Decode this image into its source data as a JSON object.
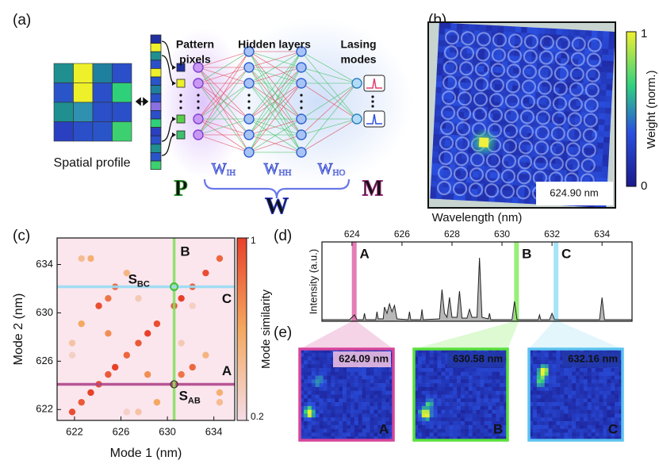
{
  "panel_labels": [
    "(a)",
    "(b)",
    "(c)",
    "(d)",
    "(e)"
  ],
  "network": {
    "input_label": "Spatial profile",
    "pattern_label": [
      "Pattern",
      "pixels"
    ],
    "hidden_label": "Hidden layers",
    "output_label": [
      "Lasing",
      "modes"
    ],
    "weights": [
      {
        "symbol": "W",
        "sub": "IH"
      },
      {
        "symbol": "W",
        "sub": "HH"
      },
      {
        "symbol": "W",
        "sub": "HO"
      }
    ],
    "symbols": {
      "pattern": "P",
      "weights": "W",
      "modes": "M"
    }
  },
  "panel_b": {
    "colorbar_label": "Weight (norm.)",
    "colorbar_ticks": [
      0,
      1
    ],
    "wavelength": "624.90 nm"
  },
  "chart_data": [
    {
      "type": "scatter",
      "xlabel": "Mode 1 (nm)",
      "ylabel": "Mode 2 (nm)",
      "xlim": [
        620.5,
        635.8
      ],
      "ylim": [
        621.1,
        636.2
      ],
      "xticks": [
        622,
        626,
        630,
        634
      ],
      "yticks": [
        622,
        626,
        630,
        634
      ],
      "x": [
        621.8,
        622.6,
        623.4,
        624.09,
        624.9,
        625.5,
        626.5,
        627.5,
        628.3,
        629.1,
        630.58,
        631.2,
        632.16,
        633.3,
        634.5,
        624.09,
        630.58,
        630.58,
        632.16,
        622.6,
        629.1,
        624.9,
        631.2,
        625.5,
        632.16,
        626.5,
        633.3,
        621.8,
        627.5,
        623.4,
        634.5,
        627.5,
        631.2,
        624.9,
        628.3,
        622.6,
        634.5,
        621.8,
        626.5
      ],
      "y": [
        621.8,
        622.6,
        623.4,
        624.09,
        624.9,
        625.5,
        626.5,
        627.5,
        628.3,
        629.1,
        630.58,
        631.2,
        632.16,
        633.3,
        634.5,
        630.58,
        624.09,
        632.16,
        630.58,
        629.1,
        622.6,
        631.2,
        624.9,
        632.16,
        625.5,
        633.3,
        626.5,
        627.5,
        621.8,
        634.5,
        623.4,
        631.2,
        627.5,
        628.3,
        624.9,
        634.5,
        622.6,
        626.5,
        621.8
      ],
      "values": [
        0.95,
        0.9,
        1,
        0.95,
        0.9,
        1,
        0.85,
        0.9,
        1,
        0.95,
        0.9,
        1,
        0.9,
        0.95,
        0.85,
        0.95,
        0.95,
        0.3,
        0.3,
        0.6,
        0.6,
        0.8,
        0.8,
        0.85,
        0.85,
        0.5,
        0.5,
        0.4,
        0.4,
        0.55,
        0.55,
        0.35,
        0.35,
        0.7,
        0.7,
        0.45,
        0.45,
        0.3,
        0.3
      ],
      "colorbar": {
        "label": "Mode similarity",
        "lim": [
          0.2,
          1
        ],
        "ticks": [
          0.2,
          1
        ]
      },
      "lines": [
        {
          "label": "A",
          "axis": "y",
          "value": 624.09,
          "color": "#b0458a",
          "label_color": "#9a2a6e"
        },
        {
          "label": "B",
          "axis": "x",
          "value": 630.58,
          "color": "#86e060",
          "label_color": "#5cd040"
        },
        {
          "label": "C",
          "axis": "y",
          "value": 632.16,
          "color": "#98dcf4",
          "label_color": "#6ccaf0"
        }
      ],
      "annotations": [
        {
          "text": "S",
          "sub": "BC"
        },
        {
          "text": "S",
          "sub": "AB"
        }
      ]
    },
    {
      "type": "line",
      "xlabel": "Wavelength (nm)",
      "ylabel": "Intensity (a.u.)",
      "xlim": [
        622.8,
        635.2
      ],
      "xticks": [
        624,
        626,
        628,
        630,
        632,
        634
      ],
      "ylim": [
        0,
        1
      ],
      "x": [
        622.8,
        623.9,
        624.1,
        624.2,
        624.45,
        624.5,
        624.55,
        624.95,
        625.0,
        625.05,
        625.25,
        625.3,
        625.4,
        625.5,
        625.6,
        625.7,
        625.8,
        626.25,
        626.3,
        626.35,
        626.75,
        626.8,
        626.85,
        627.5,
        627.6,
        627.7,
        627.8,
        627.9,
        628.0,
        628.2,
        628.3,
        628.4,
        628.6,
        628.7,
        628.8,
        629.0,
        629.1,
        629.2,
        629.45,
        629.5,
        629.55,
        630.4,
        630.5,
        630.6,
        631.45,
        631.5,
        631.55,
        631.9,
        632.0,
        632.1,
        633.9,
        634.0,
        634.1,
        635.2
      ],
      "values": [
        0.02,
        0.02,
        0.08,
        0.02,
        0.02,
        0.1,
        0.02,
        0.02,
        0.12,
        0.03,
        0.03,
        0.18,
        0.1,
        0.22,
        0.12,
        0.2,
        0.03,
        0.02,
        0.12,
        0.02,
        0.02,
        0.15,
        0.02,
        0.03,
        0.4,
        0.1,
        0.05,
        0.3,
        0.05,
        0.05,
        0.38,
        0.04,
        0.04,
        0.15,
        0.05,
        0.05,
        0.8,
        0.05,
        0.03,
        0.1,
        0.02,
        0.02,
        0.25,
        0.02,
        0.02,
        0.08,
        0.02,
        0.02,
        0.1,
        0.02,
        0.02,
        0.3,
        0.02,
        0.02
      ],
      "color": "#222222",
      "fill": "#b8b8b8",
      "markers": [
        {
          "label": "A",
          "x": 624.09,
          "color": "#e066a8",
          "label_color": "#9a2a6e"
        },
        {
          "label": "B",
          "x": 630.58,
          "color": "#86ec60",
          "label_color": "#5cd040"
        },
        {
          "label": "C",
          "x": 632.16,
          "color": "#98def6",
          "label_color": "#6ccaf0"
        }
      ]
    }
  ],
  "panel_e": [
    {
      "wavelength": "624.09 nm",
      "label": "A",
      "color": "#d6449b"
    },
    {
      "wavelength": "630.58 nm",
      "label": "B",
      "color": "#5ae03c"
    },
    {
      "wavelength": "632.16 nm",
      "label": "C",
      "color": "#5cc3f0"
    }
  ]
}
